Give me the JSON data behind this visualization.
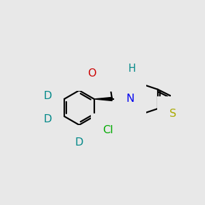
{
  "bg": "#e8e8e8",
  "colors": {
    "bond": "#000000",
    "O": "#cc0000",
    "N": "#0000ee",
    "S": "#aaaa00",
    "Cl": "#00aa00",
    "D": "#008888",
    "H": "#008888"
  },
  "bw": 1.6,
  "fs": 11.5
}
